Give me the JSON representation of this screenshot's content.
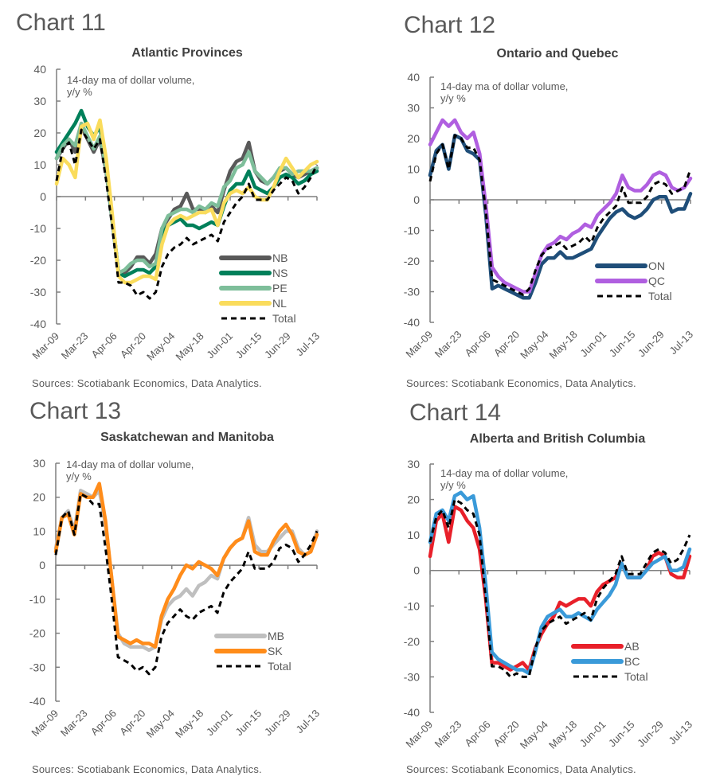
{
  "source_note": "Sources: Scotiabank Economics, Data Analytics.",
  "x_tick_labels": [
    "Mar-09",
    "Mar-23",
    "Apr-06",
    "Apr-20",
    "May-04",
    "May-18",
    "Jun-01",
    "Jun-15",
    "Jun-29",
    "Jul-13"
  ],
  "unit_note_line1": "14-day ma of dollar volume,",
  "unit_note_line2": "y/y %",
  "chart_data": [
    {
      "id": "c11",
      "chart_number": "Chart 11",
      "type": "line",
      "title": "Atlantic Provinces",
      "ylim": [
        -40,
        40
      ],
      "yticks": [
        40,
        30,
        20,
        10,
        0,
        -10,
        -20,
        -30,
        -40
      ],
      "x_days_range": [
        0,
        126
      ],
      "x_step_days": 3,
      "legend_position": "bottom-right",
      "series": [
        {
          "name": "NB",
          "color": "#595959",
          "dash": false,
          "values": [
            12,
            15,
            18,
            14,
            22,
            18,
            14,
            18,
            8,
            -8,
            -24,
            -24,
            -22,
            -19,
            -19,
            -21,
            -18,
            -10,
            -7,
            -4,
            -3,
            1,
            -4,
            -4,
            -5,
            -3,
            -5,
            2,
            8,
            11,
            12,
            17,
            8,
            5,
            4,
            6,
            8,
            9,
            7,
            6,
            7,
            8,
            9
          ]
        },
        {
          "name": "NS",
          "color": "#00805A",
          "dash": false,
          "values": [
            14,
            17,
            20,
            23,
            27,
            22,
            19,
            22,
            10,
            -7,
            -24,
            -25,
            -24,
            -23,
            -23,
            -24,
            -22,
            -12,
            -9,
            -8,
            -7,
            -9,
            -9,
            -10,
            -9,
            -8,
            -9,
            -3,
            2,
            4,
            4,
            8,
            3,
            2,
            1,
            3,
            6,
            7,
            6,
            4,
            5,
            7,
            8
          ]
        },
        {
          "name": "PE",
          "color": "#7EBE9A",
          "dash": false,
          "values": [
            12,
            16,
            18,
            16,
            23,
            19,
            15,
            19,
            9,
            -8,
            -24,
            -23,
            -21,
            -20,
            -20,
            -22,
            -21,
            -10,
            -6,
            -5,
            -4,
            -4,
            -5,
            -3,
            -4,
            -2,
            -3,
            3,
            5,
            9,
            10,
            14,
            8,
            6,
            4,
            6,
            9,
            9,
            7,
            8,
            8,
            8,
            9
          ]
        },
        {
          "name": "NL",
          "color": "#FADC5C",
          "dash": false,
          "values": [
            4,
            12,
            10,
            6,
            22,
            23,
            18,
            24,
            12,
            -6,
            -25,
            -27,
            -27,
            -26,
            -25,
            -25,
            -26,
            -15,
            -9,
            -7,
            -6,
            -7,
            -6,
            -5,
            -5,
            -4,
            -9,
            -2,
            1,
            2,
            1,
            3,
            0,
            -1,
            -1,
            3,
            8,
            12,
            9,
            6,
            8,
            10,
            11
          ]
        },
        {
          "name": "Total",
          "color": "#000000",
          "dash": true,
          "values": [
            5,
            15,
            17,
            10,
            21,
            18,
            15,
            18,
            5,
            -10,
            -27,
            -27,
            -28,
            -31,
            -30,
            -32,
            -30,
            -22,
            -18,
            -16,
            -15,
            -13,
            -15,
            -14,
            -13,
            -12,
            -14,
            -8,
            -5,
            -2,
            0,
            4,
            -1,
            -1,
            -1,
            2,
            4,
            6,
            5,
            1,
            3,
            6,
            10
          ]
        }
      ]
    },
    {
      "id": "c12",
      "chart_number": "Chart 12",
      "type": "line",
      "title": "Ontario and Quebec",
      "ylim": [
        -40,
        40
      ],
      "yticks": [
        40,
        30,
        20,
        10,
        0,
        -10,
        -20,
        -30,
        -40
      ],
      "x_days_range": [
        0,
        126
      ],
      "x_step_days": 3,
      "legend_position": "bottom-right",
      "series": [
        {
          "name": "ON",
          "color": "#1F4E79",
          "dash": false,
          "values": [
            8,
            16,
            18,
            10,
            21,
            20,
            16,
            15,
            13,
            -5,
            -29,
            -28,
            -29,
            -30,
            -31,
            -32,
            -32,
            -27,
            -21,
            -19,
            -19,
            -17,
            -19,
            -19,
            -18,
            -17,
            -16,
            -12,
            -9,
            -6,
            -4,
            -3,
            -5,
            -6,
            -5,
            -3,
            0,
            1,
            1,
            -4,
            -3,
            -3,
            2
          ]
        },
        {
          "name": "QC",
          "color": "#B05FE0",
          "dash": false,
          "values": [
            18,
            22,
            26,
            24,
            26,
            22,
            20,
            22,
            15,
            -2,
            -22,
            -25,
            -27,
            -28,
            -29,
            -30,
            -30,
            -24,
            -18,
            -15,
            -14,
            -12,
            -13,
            -11,
            -10,
            -8,
            -9,
            -5,
            -3,
            -1,
            2,
            8,
            4,
            3,
            3,
            5,
            8,
            9,
            8,
            4,
            3,
            4,
            7
          ]
        },
        {
          "name": "Total",
          "color": "#000000",
          "dash": true,
          "values": [
            6,
            15,
            18,
            10,
            21,
            20,
            17,
            17,
            13,
            -4,
            -26,
            -27,
            -28,
            -29,
            -30,
            -31,
            -29,
            -23,
            -18,
            -16,
            -15,
            -14,
            -16,
            -15,
            -14,
            -12,
            -14,
            -9,
            -6,
            -4,
            -2,
            4,
            -1,
            -1,
            -1,
            1,
            5,
            6,
            5,
            2,
            3,
            4,
            10
          ]
        }
      ]
    },
    {
      "id": "c13",
      "chart_number": "Chart 13",
      "type": "line",
      "title": "Saskatchewan and Manitoba",
      "ylim": [
        -40,
        30
      ],
      "yticks": [
        30,
        20,
        10,
        0,
        -10,
        -20,
        -30,
        -40
      ],
      "x_days_range": [
        0,
        126
      ],
      "x_step_days": 3,
      "legend_position": "bottom-right",
      "series": [
        {
          "name": "MB",
          "color": "#BFBFBF",
          "dash": false,
          "values": [
            5,
            14,
            16,
            10,
            22,
            21,
            20,
            22,
            12,
            -4,
            -20,
            -23,
            -24,
            -24,
            -24,
            -25,
            -24,
            -16,
            -12,
            -10,
            -9,
            -7,
            -9,
            -6,
            -5,
            -3,
            -4,
            2,
            5,
            7,
            8,
            14,
            6,
            4,
            4,
            6,
            8,
            10,
            10,
            5,
            3,
            4,
            10
          ]
        },
        {
          "name": "SK",
          "color": "#FF8C1A",
          "dash": false,
          "values": [
            4,
            14,
            15,
            9,
            21,
            20,
            20,
            24,
            13,
            -4,
            -21,
            -22,
            -23,
            -22,
            -23,
            -23,
            -24,
            -15,
            -10,
            -7,
            -3,
            0,
            -1,
            1,
            0,
            -1,
            -3,
            2,
            5,
            7,
            8,
            13,
            4,
            3,
            3,
            7,
            10,
            12,
            9,
            4,
            3,
            4,
            9
          ]
        },
        {
          "name": "Total",
          "color": "#000000",
          "dash": true,
          "values": [
            3,
            14,
            16,
            9,
            21,
            20,
            18,
            18,
            5,
            -10,
            -27,
            -28,
            -29,
            -31,
            -30,
            -32,
            -30,
            -21,
            -17,
            -15,
            -13,
            -15,
            -16,
            -14,
            -13,
            -12,
            -14,
            -8,
            -5,
            -3,
            -1,
            4,
            -1,
            -1,
            -1,
            1,
            5,
            6,
            5,
            1,
            3,
            6,
            10
          ]
        }
      ]
    },
    {
      "id": "c14",
      "chart_number": "Chart 14",
      "type": "line",
      "title": "Alberta and British Columbia",
      "ylim": [
        -40,
        30
      ],
      "yticks": [
        30,
        20,
        10,
        0,
        -10,
        -20,
        -30,
        -40
      ],
      "x_days_range": [
        0,
        126
      ],
      "x_step_days": 3,
      "legend_position": "bottom-right",
      "series": [
        {
          "name": "AB",
          "color": "#E8202A",
          "dash": false,
          "values": [
            4,
            14,
            16,
            8,
            18,
            17,
            14,
            12,
            6,
            -8,
            -26,
            -26,
            -27,
            -28,
            -27,
            -26,
            -28,
            -22,
            -18,
            -15,
            -13,
            -9,
            -10,
            -9,
            -8,
            -8,
            -10,
            -6,
            -4,
            -3,
            -2,
            2,
            -2,
            -2,
            -2,
            0,
            4,
            5,
            4,
            -1,
            -2,
            -2,
            4
          ]
        },
        {
          "name": "BC",
          "color": "#3A9AD9",
          "dash": false,
          "values": [
            8,
            16,
            17,
            14,
            21,
            22,
            20,
            21,
            12,
            -4,
            -23,
            -25,
            -26,
            -27,
            -28,
            -28,
            -29,
            -23,
            -16,
            -13,
            -12,
            -11,
            -13,
            -13,
            -12,
            -13,
            -14,
            -11,
            -9,
            -7,
            -4,
            2,
            -2,
            -2,
            -2,
            0,
            2,
            3,
            4,
            0,
            0,
            1,
            6
          ]
        },
        {
          "name": "Total",
          "color": "#000000",
          "dash": true,
          "values": [
            8,
            15,
            17,
            12,
            20,
            19,
            17,
            16,
            10,
            -8,
            -27,
            -27,
            -28,
            -30,
            -29,
            -30,
            -30,
            -22,
            -17,
            -15,
            -14,
            -13,
            -15,
            -14,
            -13,
            -12,
            -14,
            -8,
            -5,
            -3,
            -1,
            4,
            -1,
            -1,
            -1,
            2,
            5,
            6,
            5,
            2,
            3,
            6,
            10
          ]
        }
      ]
    }
  ]
}
